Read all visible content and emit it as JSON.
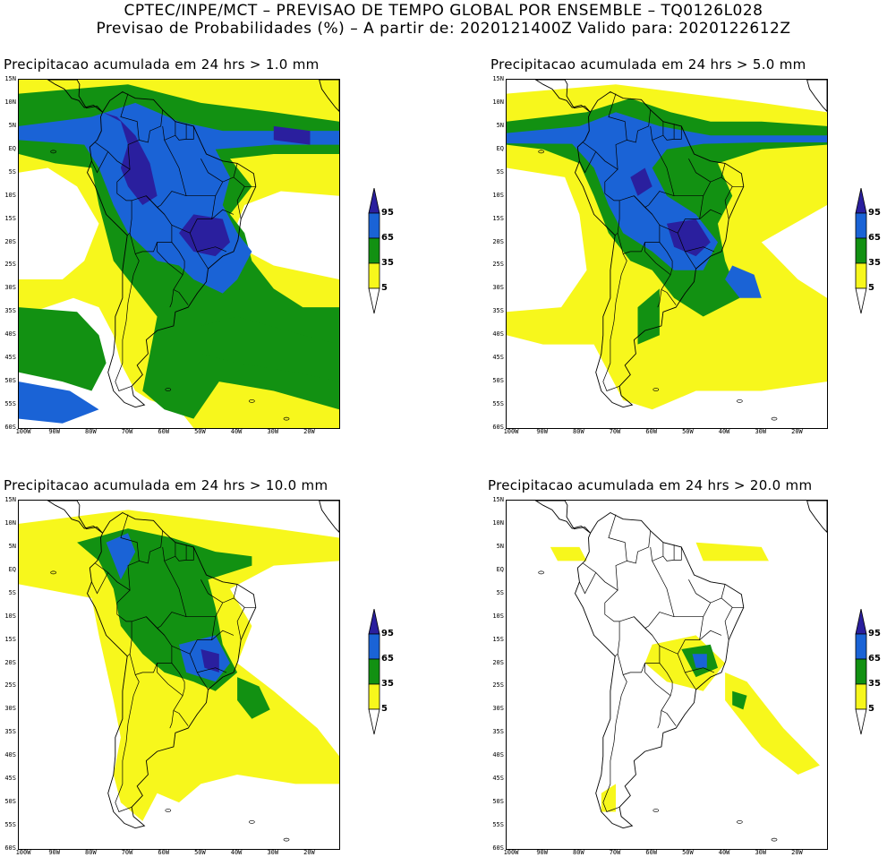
{
  "header": {
    "line1": "CPTEC/INPE/MCT – PREVISAO DE TEMPO GLOBAL POR ENSEMBLE – TQ0126L028",
    "line2": "Previsao de Probabilidades (%) –   A partir de: 2020121400Z  Valido para: 2020122612Z"
  },
  "lat_ticks": [
    "15N",
    "10N",
    "5N",
    "EQ",
    "5S",
    "10S",
    "15S",
    "20S",
    "25S",
    "30S",
    "35S",
    "40S",
    "45S",
    "50S",
    "55S",
    "60S"
  ],
  "lon_ticks": [
    "100W",
    "90W",
    "80W",
    "70W",
    "60W",
    "50W",
    "40W",
    "30W",
    "20W"
  ],
  "colorbar": {
    "levels": [
      "95",
      "65",
      "35",
      "5"
    ],
    "colors": {
      "c95": "#2a1f9e",
      "c65": "#1a63d6",
      "c35": "#129112",
      "c5": "#f7f71c",
      "c0": "#ffffff"
    }
  },
  "panels": [
    {
      "title": "Precipitacao acumulada em 24 hrs > 1.0 mm"
    },
    {
      "title": "Precipitacao acumulada em 24 hrs > 5.0 mm"
    },
    {
      "title": "Precipitacao acumulada em 24 hrs > 10.0 mm"
    },
    {
      "title": "Precipitacao acumulada em 24 hrs > 20.0 mm"
    }
  ]
}
